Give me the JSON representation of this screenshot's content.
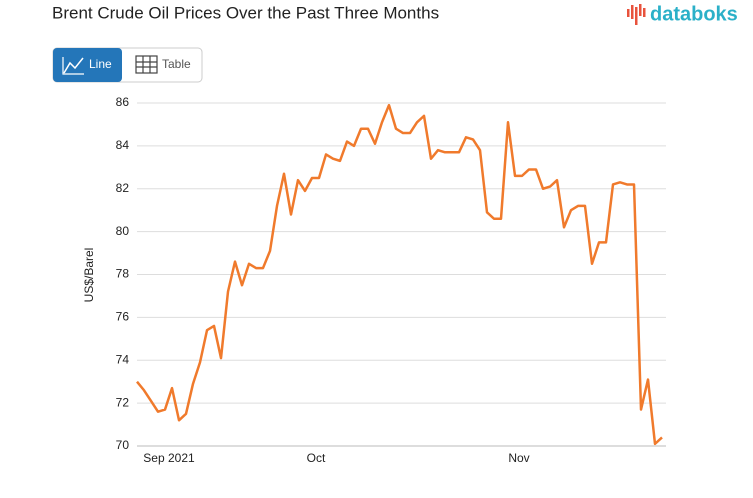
{
  "logo": "databoks",
  "controls": [
    "Line",
    "Table"
  ],
  "chart_data": {
    "type": "line",
    "title": "Brent Crude Oil Prices Over the Past Three Months",
    "y_label": "US$/Barel",
    "categories": [
      null,
      null,
      null,
      null,
      null,
      "Sep 2021",
      null,
      null,
      null,
      null,
      null,
      null,
      null,
      null,
      null,
      null,
      null,
      null,
      null,
      null,
      null,
      null,
      null,
      null,
      null,
      null,
      "Oct",
      null,
      null,
      null,
      null,
      null,
      null,
      null,
      null,
      null,
      null,
      null,
      null,
      null,
      null,
      null,
      null,
      null,
      null,
      null,
      null,
      null,
      null,
      null,
      null,
      null,
      null,
      null,
      null,
      "Nov",
      null,
      null,
      null,
      null,
      null,
      null,
      null,
      null,
      null,
      null,
      null,
      null,
      null,
      null,
      null,
      null,
      null,
      null,
      null,
      null
    ],
    "values": [
      73.0,
      72.6,
      72.1,
      71.6,
      71.7,
      72.7,
      71.2,
      71.5,
      72.9,
      73.9,
      75.4,
      75.6,
      74.1,
      77.2,
      78.6,
      77.5,
      78.5,
      78.3,
      78.3,
      79.1,
      81.2,
      82.7,
      80.8,
      82.4,
      81.9,
      82.5,
      82.5,
      83.6,
      83.4,
      83.3,
      84.2,
      84.0,
      84.8,
      84.8,
      84.1,
      85.1,
      85.9,
      84.8,
      84.6,
      84.6,
      85.1,
      85.4,
      83.4,
      83.8,
      83.7,
      83.7,
      83.7,
      84.4,
      84.3,
      83.8,
      80.9,
      80.6,
      80.6,
      85.1,
      82.6,
      82.6,
      82.9,
      82.9,
      82.0,
      82.1,
      82.4,
      80.2,
      81.0,
      81.2,
      81.2,
      78.5,
      79.5,
      79.5,
      82.2,
      82.3,
      82.2,
      82.2,
      71.7,
      73.1,
      70.1,
      70.4
    ],
    "color": "#f07a2c",
    "ylim": [
      70,
      86
    ],
    "yticks": [
      70,
      72,
      74,
      76,
      78,
      80,
      82,
      84,
      86
    ],
    "grid": true
  }
}
